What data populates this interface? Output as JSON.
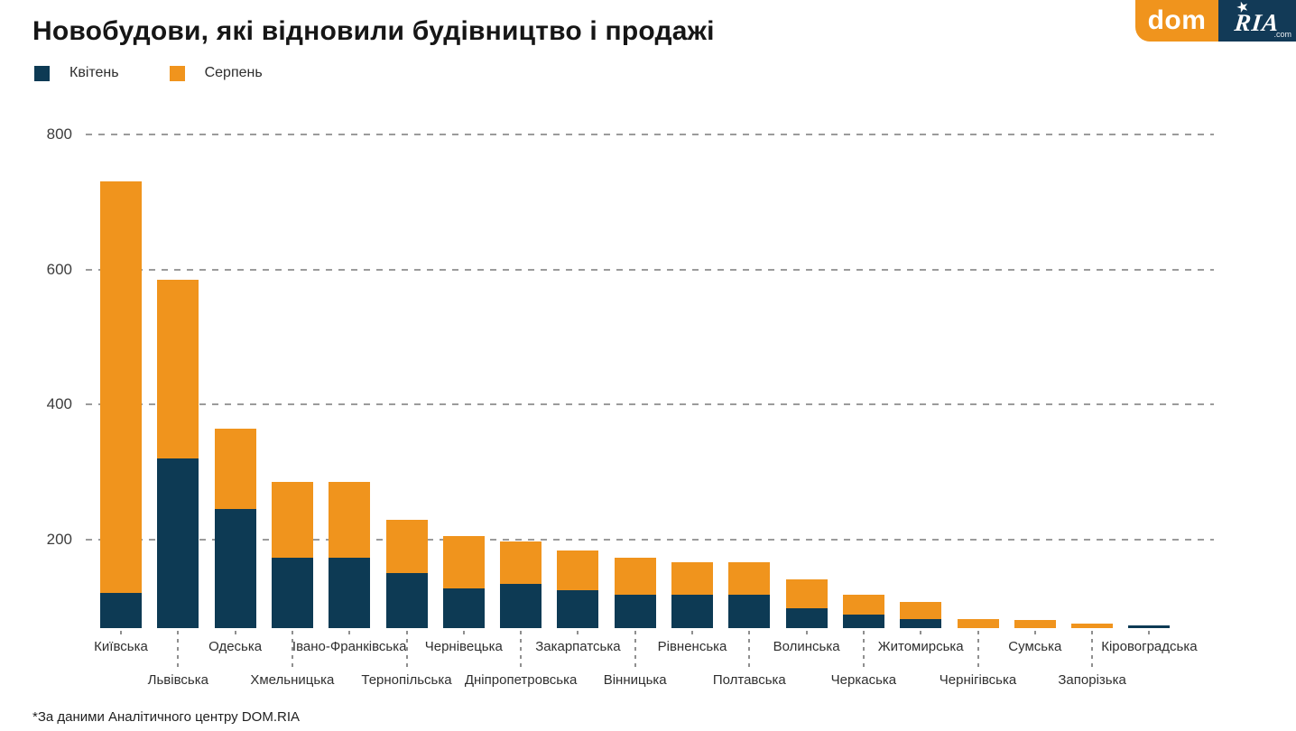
{
  "header": {
    "title": "Новобудови, які відновили будівництво і продажі"
  },
  "logo": {
    "dom": "dom",
    "ria": "RIA",
    "tld": ".com",
    "star_icon": "star-icon",
    "orange": "#F0941D",
    "navy": "#123A57"
  },
  "footnote": "*За даними Аналітичного центру DOM.RIA",
  "chart_data": {
    "type": "bar",
    "stacked": true,
    "title": "Новобудови, які відновили будівництво і продажі",
    "legend_position": "top-left",
    "grid": "horizontal dashed",
    "ylim": [
      0,
      800
    ],
    "y_ticks": [
      200,
      400,
      600,
      800
    ],
    "categories": [
      "Київська",
      "Львівська",
      "Одеська",
      "Хмельницька",
      "Івано-Франківська",
      "Тернопільська",
      "Чернівецька",
      "Дніпропетровська",
      "Закарпатська",
      "Вінницька",
      "Рівненська",
      "Полтавська",
      "Волинська",
      "Черкаська",
      "Житомирська",
      "Чернігівська",
      "Сумська",
      "Запорізька",
      "Кіровоградська"
    ],
    "series": [
      {
        "name": "Квітень",
        "color": "#0D3A54",
        "values": [
          80,
          320,
          245,
          160,
          160,
          125,
          90,
          100,
          85,
          75,
          75,
          75,
          45,
          30,
          20,
          0,
          0,
          0,
          7
        ]
      },
      {
        "name": "Серпень",
        "color": "#F0941D",
        "values": [
          650,
          265,
          120,
          125,
          125,
          105,
          115,
          95,
          90,
          85,
          75,
          75,
          65,
          45,
          40,
          20,
          18,
          11,
          0
        ]
      }
    ],
    "totals": [
      730,
      585,
      365,
      285,
      285,
      230,
      205,
      195,
      175,
      160,
      150,
      150,
      110,
      75,
      60,
      20,
      18,
      11,
      7
    ]
  }
}
